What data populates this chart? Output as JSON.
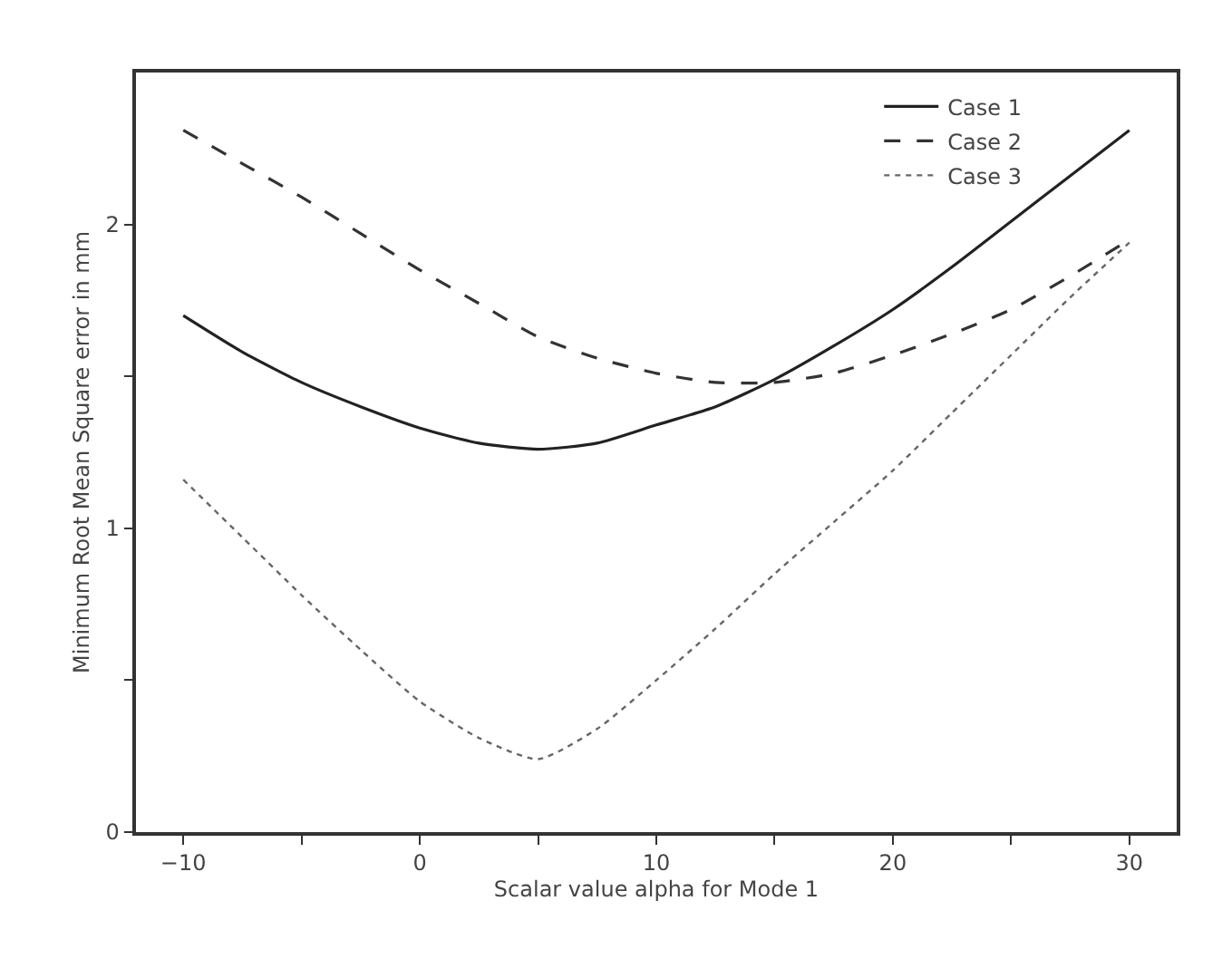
{
  "chart_data": {
    "type": "line",
    "xlabel": "Scalar value alpha for Mode 1",
    "ylabel": "Minimum Root Mean Square error in mm",
    "x": [
      -10,
      -7.5,
      -5,
      -2.5,
      0,
      2.5,
      5,
      7.5,
      10,
      12.5,
      15,
      17.5,
      20,
      22.5,
      25,
      27.5,
      30
    ],
    "series": [
      {
        "name": "Case 1",
        "color": "#222222",
        "line_style": "solid",
        "values": [
          1.7,
          1.58,
          1.48,
          1.4,
          1.33,
          1.28,
          1.26,
          1.28,
          1.34,
          1.4,
          1.49,
          1.6,
          1.72,
          1.86,
          2.01,
          2.16,
          2.31
        ]
      },
      {
        "name": "Case 2",
        "color": "#333333",
        "line_style": "dashed",
        "values": [
          2.31,
          2.2,
          2.09,
          1.97,
          1.85,
          1.74,
          1.63,
          1.56,
          1.51,
          1.48,
          1.48,
          1.51,
          1.57,
          1.64,
          1.72,
          1.83,
          1.95
        ]
      },
      {
        "name": "Case 3",
        "color": "#666666",
        "line_style": "dotted",
        "values": [
          1.16,
          0.97,
          0.78,
          0.6,
          0.43,
          0.31,
          0.24,
          0.34,
          0.5,
          0.67,
          0.85,
          1.02,
          1.19,
          1.38,
          1.57,
          1.76,
          1.94
        ]
      }
    ],
    "xlim": [
      -12,
      32
    ],
    "ylim": [
      0,
      2.5
    ],
    "xticks": [
      -10,
      {
        "value": -5,
        "label": null
      },
      0,
      {
        "value": 5,
        "label": null
      },
      10,
      {
        "value": 15,
        "label": null
      },
      20,
      {
        "value": 25,
        "label": null
      },
      30
    ],
    "yticks": [
      0,
      {
        "value": 0.5,
        "label": null
      },
      1,
      {
        "value": 1.5,
        "label": null
      },
      2
    ],
    "grid": false,
    "legend": "top right",
    "marker": "none"
  }
}
